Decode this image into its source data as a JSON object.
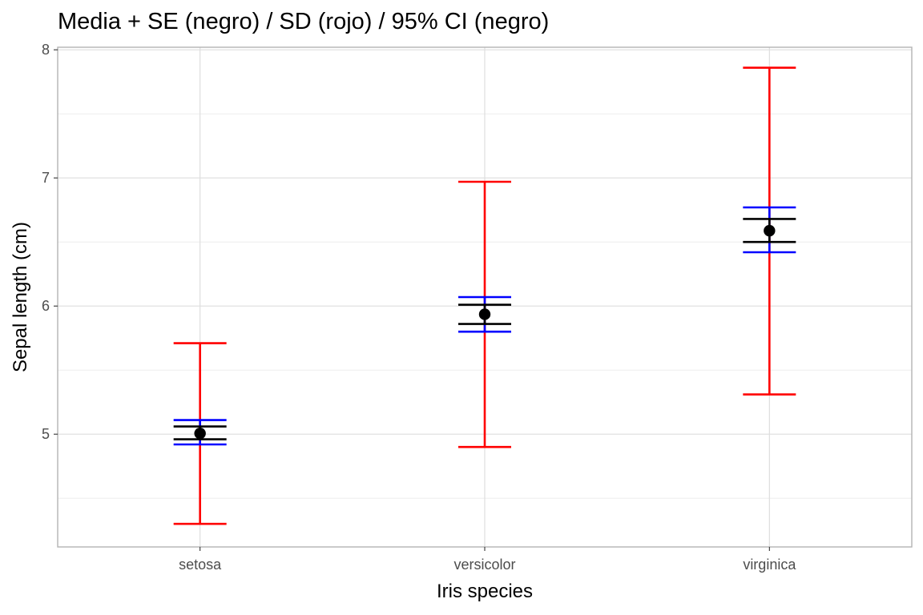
{
  "chart_data": {
    "type": "errorbar",
    "title": "Media + SE (negro) / SD (rojo) / 95% CI (negro)",
    "xlabel": "Iris species",
    "ylabel": "Sepal length (cm)",
    "categories": [
      "setosa",
      "versicolor",
      "virginica"
    ],
    "ylim": [
      4.12,
      8.02
    ],
    "yticks": [
      5,
      6,
      7,
      8
    ],
    "grid": true,
    "mean": [
      5.006,
      5.936,
      6.588
    ],
    "series": [
      {
        "color": "#FF0000",
        "lower": [
          4.3,
          4.9,
          5.31
        ],
        "upper": [
          5.71,
          6.97,
          7.86
        ]
      },
      {
        "color": "#0000FF",
        "lower": [
          4.92,
          5.8,
          6.42
        ],
        "upper": [
          5.11,
          6.07,
          6.77
        ]
      },
      {
        "color": "#000000",
        "lower": [
          4.96,
          5.86,
          6.5
        ],
        "upper": [
          5.06,
          6.01,
          6.68
        ]
      }
    ]
  }
}
